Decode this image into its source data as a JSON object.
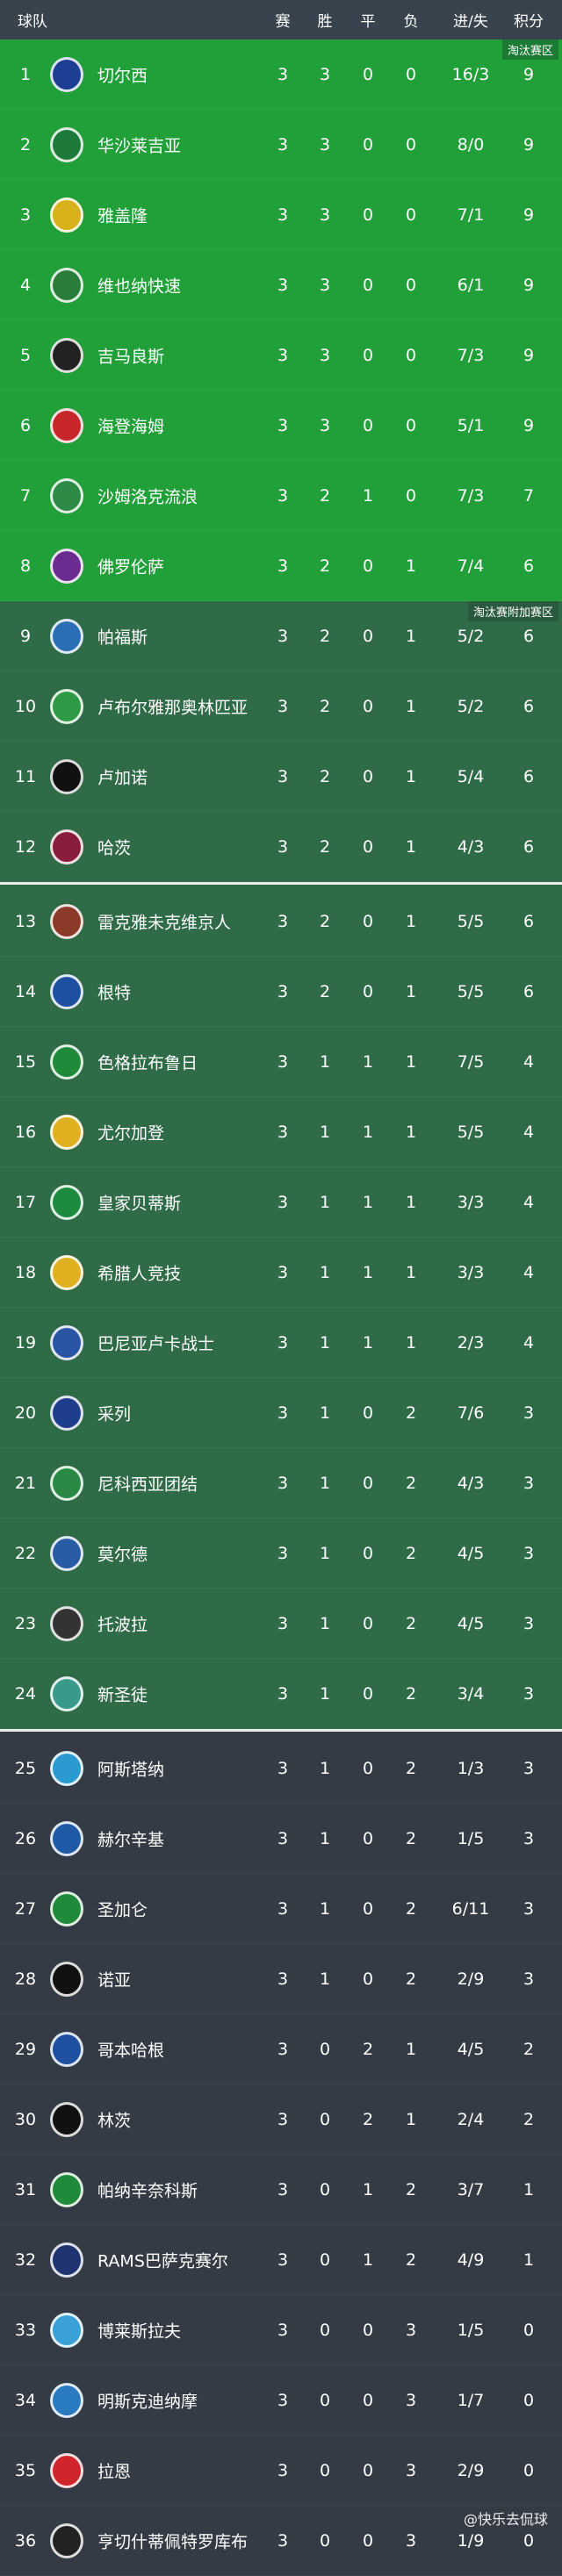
{
  "header": {
    "team": "球队",
    "played": "赛",
    "won": "胜",
    "drawn": "平",
    "lost": "负",
    "goals": "进/失",
    "points": "积分"
  },
  "zones": {
    "knockout": "淘汰赛区",
    "playoff": "淘汰赛附加赛区"
  },
  "colors": {
    "header": "#39434d",
    "knockout": "#21a03a",
    "playoff": "#2f6b47",
    "eliminated": "#343b44"
  },
  "watermark": "@快乐去侃球",
  "teams": [
    {
      "rank": "1",
      "name": "切尔西",
      "p": "3",
      "w": "3",
      "d": "0",
      "l": "0",
      "g": "16/3",
      "pts": "9",
      "logo": "#1c3f94"
    },
    {
      "rank": "2",
      "name": "华沙莱吉亚",
      "p": "3",
      "w": "3",
      "d": "0",
      "l": "0",
      "g": "8/0",
      "pts": "9",
      "logo": "#1e7a3a"
    },
    {
      "rank": "3",
      "name": "雅盖隆",
      "p": "3",
      "w": "3",
      "d": "0",
      "l": "0",
      "g": "7/1",
      "pts": "9",
      "logo": "#d8b21a"
    },
    {
      "rank": "4",
      "name": "维也纳快速",
      "p": "3",
      "w": "3",
      "d": "0",
      "l": "0",
      "g": "6/1",
      "pts": "9",
      "logo": "#2b7d3c"
    },
    {
      "rank": "5",
      "name": "吉马良斯",
      "p": "3",
      "w": "3",
      "d": "0",
      "l": "0",
      "g": "7/3",
      "pts": "9",
      "logo": "#222222"
    },
    {
      "rank": "6",
      "name": "海登海姆",
      "p": "3",
      "w": "3",
      "d": "0",
      "l": "0",
      "g": "5/1",
      "pts": "9",
      "logo": "#c7262b"
    },
    {
      "rank": "7",
      "name": "沙姆洛克流浪",
      "p": "3",
      "w": "2",
      "d": "1",
      "l": "0",
      "g": "7/3",
      "pts": "7",
      "logo": "#2e8b47"
    },
    {
      "rank": "8",
      "name": "佛罗伦萨",
      "p": "3",
      "w": "2",
      "d": "0",
      "l": "1",
      "g": "7/4",
      "pts": "6",
      "logo": "#6b2c91"
    },
    {
      "rank": "9",
      "name": "帕福斯",
      "p": "3",
      "w": "2",
      "d": "0",
      "l": "1",
      "g": "5/2",
      "pts": "6",
      "logo": "#2a6fb5"
    },
    {
      "rank": "10",
      "name": "卢布尔雅那奥林匹亚",
      "p": "3",
      "w": "2",
      "d": "0",
      "l": "1",
      "g": "5/2",
      "pts": "6",
      "logo": "#2f9a45"
    },
    {
      "rank": "11",
      "name": "卢加诺",
      "p": "3",
      "w": "2",
      "d": "0",
      "l": "1",
      "g": "5/4",
      "pts": "6",
      "logo": "#111111"
    },
    {
      "rank": "12",
      "name": "哈茨",
      "p": "3",
      "w": "2",
      "d": "0",
      "l": "1",
      "g": "4/3",
      "pts": "6",
      "logo": "#8a1d3b"
    },
    {
      "rank": "13",
      "name": "雷克雅未克维京人",
      "p": "3",
      "w": "2",
      "d": "0",
      "l": "1",
      "g": "5/5",
      "pts": "6",
      "logo": "#8b3a2a"
    },
    {
      "rank": "14",
      "name": "根特",
      "p": "3",
      "w": "2",
      "d": "0",
      "l": "1",
      "g": "5/5",
      "pts": "6",
      "logo": "#1e4fa0"
    },
    {
      "rank": "15",
      "name": "色格拉布鲁日",
      "p": "3",
      "w": "1",
      "d": "1",
      "l": "1",
      "g": "7/5",
      "pts": "4",
      "logo": "#1f8a3a"
    },
    {
      "rank": "16",
      "name": "尤尔加登",
      "p": "3",
      "w": "1",
      "d": "1",
      "l": "1",
      "g": "5/5",
      "pts": "4",
      "logo": "#e0b020"
    },
    {
      "rank": "17",
      "name": "皇家贝蒂斯",
      "p": "3",
      "w": "1",
      "d": "1",
      "l": "1",
      "g": "3/3",
      "pts": "4",
      "logo": "#1c8a3f"
    },
    {
      "rank": "18",
      "name": "希腊人竞技",
      "p": "3",
      "w": "1",
      "d": "1",
      "l": "1",
      "g": "3/3",
      "pts": "4",
      "logo": "#e0b020"
    },
    {
      "rank": "19",
      "name": "巴尼亚卢卡战士",
      "p": "3",
      "w": "1",
      "d": "1",
      "l": "1",
      "g": "2/3",
      "pts": "4",
      "logo": "#2a55a5"
    },
    {
      "rank": "20",
      "name": "采列",
      "p": "3",
      "w": "1",
      "d": "0",
      "l": "2",
      "g": "7/6",
      "pts": "3",
      "logo": "#1e3d8a"
    },
    {
      "rank": "21",
      "name": "尼科西亚团结",
      "p": "3",
      "w": "1",
      "d": "0",
      "l": "2",
      "g": "4/3",
      "pts": "3",
      "logo": "#2a8a45"
    },
    {
      "rank": "22",
      "name": "莫尔德",
      "p": "3",
      "w": "1",
      "d": "0",
      "l": "2",
      "g": "4/5",
      "pts": "3",
      "logo": "#2a5ca5"
    },
    {
      "rank": "23",
      "name": "托波拉",
      "p": "3",
      "w": "1",
      "d": "0",
      "l": "2",
      "g": "4/5",
      "pts": "3",
      "logo": "#333333"
    },
    {
      "rank": "24",
      "name": "新圣徒",
      "p": "3",
      "w": "1",
      "d": "0",
      "l": "2",
      "g": "3/4",
      "pts": "3",
      "logo": "#3a9a8a"
    },
    {
      "rank": "25",
      "name": "阿斯塔纳",
      "p": "3",
      "w": "1",
      "d": "0",
      "l": "2",
      "g": "1/3",
      "pts": "3",
      "logo": "#2a9ad0"
    },
    {
      "rank": "26",
      "name": "赫尔辛基",
      "p": "3",
      "w": "1",
      "d": "0",
      "l": "2",
      "g": "1/5",
      "pts": "3",
      "logo": "#1e5aa5"
    },
    {
      "rank": "27",
      "name": "圣加仑",
      "p": "3",
      "w": "1",
      "d": "0",
      "l": "2",
      "g": "6/11",
      "pts": "3",
      "logo": "#1f8a3a"
    },
    {
      "rank": "28",
      "name": "诺亚",
      "p": "3",
      "w": "1",
      "d": "0",
      "l": "2",
      "g": "2/9",
      "pts": "3",
      "logo": "#111111"
    },
    {
      "rank": "29",
      "name": "哥本哈根",
      "p": "3",
      "w": "0",
      "d": "2",
      "l": "1",
      "g": "4/5",
      "pts": "2",
      "logo": "#1e4fa0"
    },
    {
      "rank": "30",
      "name": "林茨",
      "p": "3",
      "w": "0",
      "d": "2",
      "l": "1",
      "g": "2/4",
      "pts": "2",
      "logo": "#111111"
    },
    {
      "rank": "31",
      "name": "帕纳辛奈科斯",
      "p": "3",
      "w": "0",
      "d": "1",
      "l": "2",
      "g": "3/7",
      "pts": "1",
      "logo": "#1f8a3a"
    },
    {
      "rank": "32",
      "name": "RAMS巴萨克赛尔",
      "p": "3",
      "w": "0",
      "d": "1",
      "l": "2",
      "g": "4/9",
      "pts": "1",
      "logo": "#1e3370"
    },
    {
      "rank": "33",
      "name": "博莱斯拉夫",
      "p": "3",
      "w": "0",
      "d": "0",
      "l": "3",
      "g": "1/5",
      "pts": "0",
      "logo": "#3aa0d8"
    },
    {
      "rank": "34",
      "name": "明斯克迪纳摩",
      "p": "3",
      "w": "0",
      "d": "0",
      "l": "3",
      "g": "1/7",
      "pts": "0",
      "logo": "#2a7ac0"
    },
    {
      "rank": "35",
      "name": "拉恩",
      "p": "3",
      "w": "0",
      "d": "0",
      "l": "3",
      "g": "2/9",
      "pts": "0",
      "logo": "#d0262b"
    },
    {
      "rank": "36",
      "name": "亨切什蒂佩特罗库布",
      "p": "3",
      "w": "0",
      "d": "0",
      "l": "3",
      "g": "1/9",
      "pts": "0",
      "logo": "#222222"
    }
  ]
}
